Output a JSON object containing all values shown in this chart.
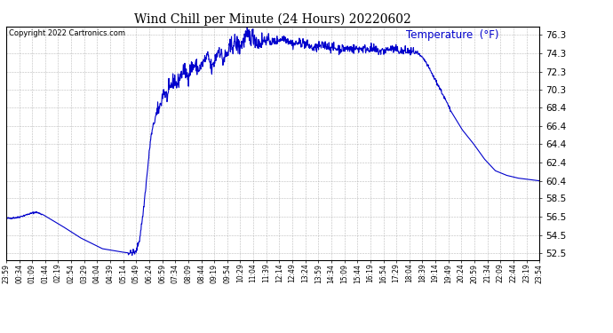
{
  "title": "Wind Chill per Minute (24 Hours) 20220602",
  "copyright_text": "Copyright 2022 Cartronics.com",
  "legend_label": "Temperature  (°F)",
  "line_color": "#0000cc",
  "background_color": "#ffffff",
  "grid_color": "#aaaaaa",
  "yticks": [
    52.5,
    54.5,
    56.5,
    58.5,
    60.4,
    62.4,
    64.4,
    66.4,
    68.4,
    70.3,
    72.3,
    74.3,
    76.3
  ],
  "ylim": [
    51.8,
    77.2
  ],
  "xtick_labels": [
    "23:59",
    "00:34",
    "01:09",
    "01:44",
    "02:19",
    "02:54",
    "03:29",
    "04:04",
    "04:39",
    "05:14",
    "05:49",
    "06:24",
    "06:59",
    "07:34",
    "08:09",
    "08:44",
    "09:19",
    "09:54",
    "10:29",
    "11:04",
    "11:39",
    "12:14",
    "12:49",
    "13:24",
    "13:59",
    "14:34",
    "15:09",
    "15:44",
    "16:19",
    "16:54",
    "17:29",
    "18:04",
    "18:39",
    "19:14",
    "19:49",
    "20:24",
    "20:59",
    "21:34",
    "22:09",
    "22:44",
    "23:19",
    "23:54"
  ],
  "num_points": 1440,
  "keypoints": [
    [
      0,
      56.3
    ],
    [
      30,
      56.4
    ],
    [
      80,
      57.0
    ],
    [
      100,
      56.7
    ],
    [
      150,
      55.5
    ],
    [
      200,
      54.2
    ],
    [
      260,
      53.0
    ],
    [
      310,
      52.65
    ],
    [
      330,
      52.55
    ],
    [
      350,
      52.6
    ],
    [
      360,
      54.0
    ],
    [
      370,
      57.0
    ],
    [
      380,
      61.0
    ],
    [
      390,
      65.0
    ],
    [
      400,
      67.0
    ],
    [
      415,
      68.5
    ],
    [
      425,
      70.2
    ],
    [
      435,
      69.5
    ],
    [
      445,
      70.8
    ],
    [
      455,
      71.5
    ],
    [
      460,
      70.8
    ],
    [
      470,
      71.8
    ],
    [
      480,
      72.5
    ],
    [
      490,
      71.8
    ],
    [
      500,
      72.8
    ],
    [
      510,
      73.0
    ],
    [
      520,
      72.5
    ],
    [
      535,
      73.5
    ],
    [
      545,
      74.0
    ],
    [
      555,
      72.5
    ],
    [
      565,
      73.8
    ],
    [
      575,
      74.8
    ],
    [
      585,
      73.5
    ],
    [
      600,
      74.5
    ],
    [
      615,
      75.5
    ],
    [
      630,
      75.0
    ],
    [
      650,
      76.2
    ],
    [
      670,
      76.1
    ],
    [
      680,
      75.3
    ],
    [
      700,
      75.8
    ],
    [
      720,
      75.5
    ],
    [
      750,
      76.0
    ],
    [
      775,
      75.3
    ],
    [
      800,
      75.5
    ],
    [
      830,
      74.8
    ],
    [
      860,
      75.2
    ],
    [
      890,
      74.8
    ],
    [
      920,
      74.8
    ],
    [
      950,
      74.8
    ],
    [
      980,
      74.8
    ],
    [
      1010,
      74.5
    ],
    [
      1040,
      74.8
    ],
    [
      1070,
      74.5
    ],
    [
      1090,
      74.5
    ],
    [
      1110,
      74.3
    ],
    [
      1130,
      73.5
    ],
    [
      1150,
      72.0
    ],
    [
      1170,
      70.5
    ],
    [
      1200,
      68.0
    ],
    [
      1230,
      66.0
    ],
    [
      1260,
      64.5
    ],
    [
      1290,
      62.8
    ],
    [
      1320,
      61.5
    ],
    [
      1350,
      61.0
    ],
    [
      1380,
      60.7
    ],
    [
      1420,
      60.5
    ],
    [
      1439,
      60.4
    ]
  ]
}
